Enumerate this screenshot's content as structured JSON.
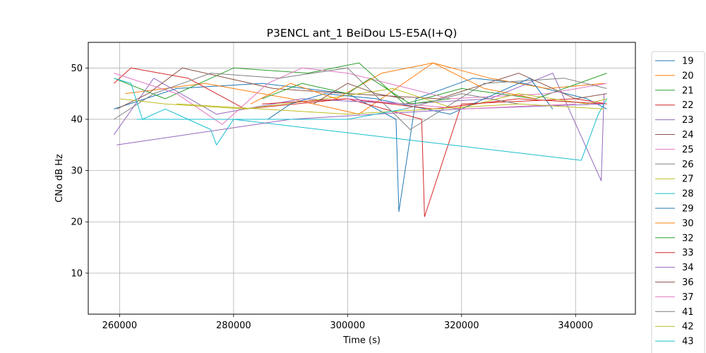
{
  "chart_data": {
    "type": "line",
    "title": "P3ENCL ant_1 BeiDou L5-E5A(I+Q)",
    "xlabel": "Time (s)",
    "ylabel": "CNo dB Hz",
    "xlim": [
      254500,
      350500
    ],
    "ylim": [
      2,
      55
    ],
    "xticks": [
      260000,
      280000,
      300000,
      320000,
      340000
    ],
    "xtick_labels": [
      "260000",
      "280000",
      "300000",
      "320000",
      "340000"
    ],
    "yticks": [
      10,
      20,
      30,
      40,
      50
    ],
    "ytick_labels": [
      "10",
      "20",
      "30",
      "40",
      "50"
    ],
    "grid": true,
    "legend_position": "outside-right",
    "series": [
      {
        "name": "19",
        "color": "#1f77b4",
        "x": [
          259000,
          270000,
          285000,
          300000,
          308500,
          309000,
          312000,
          322000,
          331000,
          342000,
          345500
        ],
        "y": [
          42,
          46,
          47,
          45,
          40,
          22,
          44,
          48,
          47,
          44,
          42
        ]
      },
      {
        "name": "20",
        "color": "#ff7f0e",
        "x": [
          261000,
          275000,
          290000,
          302000,
          315000,
          325000,
          335000,
          345000
        ],
        "y": [
          45,
          47,
          44,
          41,
          51,
          48,
          46,
          47
        ]
      },
      {
        "name": "21",
        "color": "#2ca02c",
        "x": [
          259000,
          268000,
          280000,
          293000,
          302000,
          310000,
          320000,
          333000,
          345500
        ],
        "y": [
          48,
          44,
          50,
          49,
          51,
          43,
          46,
          44,
          49
        ]
      },
      {
        "name": "22",
        "color": "#d62728",
        "x": [
          259000,
          262000,
          272000,
          282000,
          300000,
          313000,
          313500,
          320000,
          340000,
          345500
        ],
        "y": [
          47,
          50,
          48,
          42,
          44,
          40,
          21,
          43,
          44,
          43
        ]
      },
      {
        "name": "23",
        "color": "#9467bd",
        "x": [
          259000,
          266000,
          277000,
          292000,
          310000,
          325000,
          336000,
          344500,
          345000
        ],
        "y": [
          37,
          48,
          41,
          44,
          43,
          44,
          49,
          28,
          45
        ]
      },
      {
        "name": "24",
        "color": "#8c564b",
        "x": [
          259500,
          265000,
          271000,
          287000,
          300000,
          316000,
          330000,
          340000,
          345500
        ],
        "y": [
          42,
          45,
          50,
          46,
          45,
          44,
          49,
          44,
          45
        ]
      },
      {
        "name": "25",
        "color": "#e377c2",
        "x": [
          259000,
          270000,
          278000,
          286000,
          292000,
          300000,
          318000,
          335000,
          345500
        ],
        "y": [
          49,
          45,
          39,
          47,
          50,
          49,
          44,
          45,
          47
        ]
      },
      {
        "name": "26",
        "color": "#7f7f7f",
        "x": [
          259000,
          266000,
          276000,
          288000,
          300000,
          311000,
          324000,
          338000,
          345500
        ],
        "y": [
          40,
          45,
          49,
          48,
          50,
          38,
          47,
          48,
          46
        ]
      },
      {
        "name": "27",
        "color": "#bcbd22",
        "x": [
          260000,
          268000,
          282000,
          296000,
          308000,
          319000,
          330000,
          342000,
          345500
        ],
        "y": [
          44,
          43,
          42,
          44,
          46,
          42,
          45,
          43,
          44
        ]
      },
      {
        "name": "28",
        "color": "#17becf",
        "x": [
          259000,
          262000,
          264000,
          268000,
          276000,
          277000,
          280000,
          341000,
          344000,
          345500
        ],
        "y": [
          48,
          47,
          40,
          42,
          38,
          35,
          40,
          32,
          41,
          44
        ]
      },
      {
        "name": "29",
        "color": "#1f77b4",
        "x": [
          286000,
          290000,
          296000,
          305000,
          318000,
          332000,
          336000
        ],
        "y": [
          40,
          43,
          45,
          44,
          41,
          48,
          42
        ]
      },
      {
        "name": "30",
        "color": "#ff7f0e",
        "x": [
          283000,
          290000,
          298000,
          306000,
          315000,
          324000,
          333000
        ],
        "y": [
          43,
          47,
          44,
          49,
          51,
          46,
          44
        ]
      },
      {
        "name": "32",
        "color": "#2ca02c",
        "x": [
          285000,
          292000,
          300000,
          304000,
          311000,
          318000
        ],
        "y": [
          44,
          47,
          45,
          48,
          43,
          44
        ]
      },
      {
        "name": "33",
        "color": "#d62728",
        "x": [
          285000,
          300000,
          315000,
          330000,
          345000
        ],
        "y": [
          43,
          44,
          42,
          44,
          43
        ]
      },
      {
        "name": "34",
        "color": "#9467bd",
        "x": [
          259500,
          290000,
          320000,
          345000
        ],
        "y": [
          35,
          40,
          42,
          43
        ]
      },
      {
        "name": "36",
        "color": "#8c564b",
        "x": [
          294000,
          300000,
          305000,
          310000
        ],
        "y": [
          43,
          47,
          45,
          44
        ]
      },
      {
        "name": "37",
        "color": "#e377c2",
        "x": [
          300000,
          320000,
          340000
        ],
        "y": [
          44,
          42,
          43
        ]
      },
      {
        "name": "41",
        "color": "#7f7f7f",
        "x": [
          310000,
          320000,
          330000
        ],
        "y": [
          42,
          45,
          43
        ]
      },
      {
        "name": "42",
        "color": "#bcbd22",
        "x": [
          270000,
          300000,
          330000,
          345000
        ],
        "y": [
          43,
          41,
          43,
          42
        ]
      },
      {
        "name": "43",
        "color": "#17becf",
        "x": [
          263000,
          280000,
          300000,
          310000
        ],
        "y": [
          40,
          40,
          40,
          42
        ]
      }
    ]
  }
}
